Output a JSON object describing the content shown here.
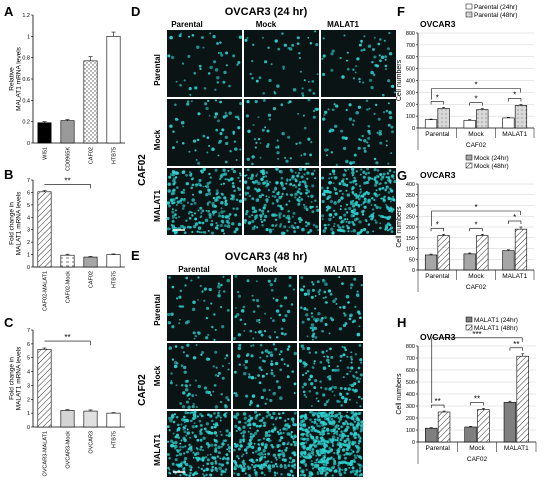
{
  "panels": {
    "A": "A",
    "B": "B",
    "C": "C",
    "D": "D",
    "E": "E",
    "F": "F",
    "G": "G",
    "H": "H"
  },
  "microscopy": {
    "D": {
      "title": "OVCAR3 (24 hr)",
      "cols": [
        "Parental",
        "Mock",
        "MALAT1"
      ],
      "rows": [
        "Parental",
        "Mock",
        "MALAT1"
      ],
      "side": "CAF02",
      "scale": "100 μm"
    },
    "E": {
      "title": "OVCAR3 (48 hr)",
      "cols": [
        "Parental",
        "Mock",
        "MALAT1"
      ],
      "rows": [
        "Parental",
        "Mock",
        "MALAT1"
      ],
      "side": "CAF02",
      "scale": "100 μm"
    }
  },
  "chart_data": [
    {
      "id": "A",
      "type": "bar",
      "ylabel": "Relative MALAT1 mRNA levels",
      "yticks": [
        "0",
        "0.2",
        "0.4",
        "0.6",
        "0.8",
        "1",
        "1.2"
      ],
      "ylim": [
        0,
        1.2
      ],
      "categories": [
        "WI51",
        "CD0965K",
        "CAF02",
        "HTB75"
      ],
      "values": [
        0.19,
        0.21,
        0.77,
        1.0
      ],
      "errors": [
        0.01,
        0.01,
        0.04,
        0.04
      ],
      "fills": [
        "solid-black",
        "solid-gray",
        "dots",
        "white"
      ],
      "significance": []
    },
    {
      "id": "B",
      "type": "bar",
      "ylabel": "Fold change in MALAT1 mRNA levels",
      "yticks": [
        "0",
        "1",
        "2",
        "3",
        "4",
        "5",
        "6",
        "7"
      ],
      "ylim": [
        0,
        7
      ],
      "categories": [
        "CAF02-MALAT1",
        "CAF02-Mock",
        "CAF02",
        "HTB75"
      ],
      "values": [
        6.05,
        0.95,
        0.8,
        1.0
      ],
      "errors": [
        0.1,
        0.08,
        0.05,
        0.05
      ],
      "fills": [
        "hatch",
        "dash",
        "gray",
        "white"
      ],
      "significance": [
        {
          "from": 0,
          "to": 2,
          "label": "**"
        }
      ]
    },
    {
      "id": "C",
      "type": "bar",
      "ylabel": "Fold change in MALAT1 mRNA levels",
      "yticks": [
        "0",
        "1",
        "2",
        "3",
        "4",
        "5",
        "6",
        "7"
      ],
      "ylim": [
        0,
        7
      ],
      "categories": [
        "OVCAR3-MALAT1",
        "OVCAR3-Mock",
        "OVCAR3",
        "HTB75"
      ],
      "values": [
        5.6,
        1.2,
        1.15,
        1.0
      ],
      "errors": [
        0.1,
        0.05,
        0.08,
        0.04
      ],
      "fills": [
        "hatch",
        "lightgray",
        "lightgray2",
        "white"
      ],
      "significance": [
        {
          "from": 0,
          "to": 2,
          "label": "**"
        }
      ]
    },
    {
      "id": "F",
      "type": "bar",
      "title": "OVCAR3",
      "ylabel": "Cell numbers",
      "yticks": [
        "0",
        "100",
        "200",
        "300",
        "400",
        "500",
        "600",
        "700",
        "800"
      ],
      "ylim": [
        0,
        800
      ],
      "categories": [
        "Parental",
        "Mock",
        "MALAT1"
      ],
      "xgroup": "CAF02",
      "series": [
        {
          "name": "Parental (24hr)",
          "values": [
            70,
            65,
            85
          ],
          "errors": [
            5,
            5,
            5
          ],
          "fill": "white"
        },
        {
          "name": "Parental (48hr)",
          "values": [
            165,
            155,
            190
          ],
          "errors": [
            8,
            8,
            8
          ],
          "fill": "dots-gray"
        }
      ],
      "pair_sig": [
        "*",
        "*",
        "*"
      ],
      "span_sig": {
        "label": "*"
      }
    },
    {
      "id": "G",
      "type": "bar",
      "title": "OVCAR3",
      "ylabel": "Cell numbers",
      "yticks": [
        "0",
        "50",
        "100",
        "150",
        "200",
        "250",
        "300",
        "350",
        "400"
      ],
      "ylim": [
        0,
        400
      ],
      "categories": [
        "Parental",
        "Mock",
        "MALAT1"
      ],
      "xgroup": "CAF02",
      "series": [
        {
          "name": "Mock (24hr)",
          "values": [
            70,
            75,
            90
          ],
          "errors": [
            4,
            4,
            4
          ],
          "fill": "gray"
        },
        {
          "name": "Mock (48hr)",
          "values": [
            160,
            160,
            190
          ],
          "errors": [
            6,
            6,
            10
          ],
          "fill": "hatch"
        }
      ],
      "pair_sig": [
        "*",
        "*",
        "*"
      ],
      "span_sig": {
        "label": "*"
      }
    },
    {
      "id": "H",
      "type": "bar",
      "title": "OVCAR3",
      "ylabel": "Cell numbers",
      "yticks": [
        "0",
        "100",
        "200",
        "300",
        "400",
        "500",
        "600",
        "700",
        "800"
      ],
      "ylim": [
        0,
        800
      ],
      "categories": [
        "Parental",
        "Mock",
        "MALAT1"
      ],
      "xgroup": "CAF02",
      "series": [
        {
          "name": "MALAT1 (24hr)",
          "values": [
            115,
            125,
            330
          ],
          "errors": [
            5,
            5,
            10
          ],
          "fill": "darkgray"
        },
        {
          "name": "MALAT1 (48hr)",
          "values": [
            250,
            270,
            715
          ],
          "errors": [
            8,
            10,
            20
          ],
          "fill": "hatch"
        }
      ],
      "pair_sig": [
        "**",
        "**",
        "**"
      ],
      "span_sig": {
        "label": "***"
      }
    }
  ]
}
